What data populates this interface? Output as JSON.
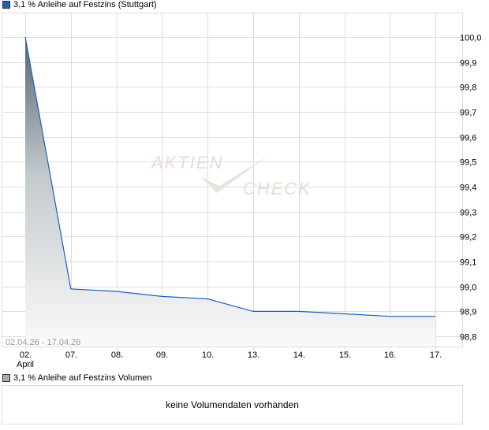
{
  "legend": {
    "price_label": "3,1 % Anleihe auf Festzins (Stuttgart)",
    "price_color": "#1f5fbf",
    "volume_label": "3,1 % Anleihe auf Festzins Volumen",
    "volume_color": "#aaaaaa"
  },
  "watermark": "AKTIEN CHECK",
  "volume": {
    "message": "keine Volumendaten vorhanden"
  },
  "chart_data": {
    "type": "area",
    "date_range": "02.04.26 - 17.04.26",
    "categories": [
      "02.",
      "07.",
      "08.",
      "09.",
      "10.",
      "13.",
      "14.",
      "15.",
      "16.",
      "17."
    ],
    "month_label": "April",
    "values": [
      100.0,
      98.99,
      98.98,
      98.96,
      98.95,
      98.9,
      98.9,
      98.89,
      98.88,
      98.88
    ],
    "yticks": [
      "100,0",
      "99,9",
      "99,8",
      "99,7",
      "99,6",
      "99,5",
      "99,4",
      "99,3",
      "99,2",
      "99,1",
      "99,0",
      "98,9",
      "98,8"
    ],
    "ylim": [
      98.76,
      100.1
    ],
    "grid": true,
    "line_color": "#1f5fbf"
  }
}
